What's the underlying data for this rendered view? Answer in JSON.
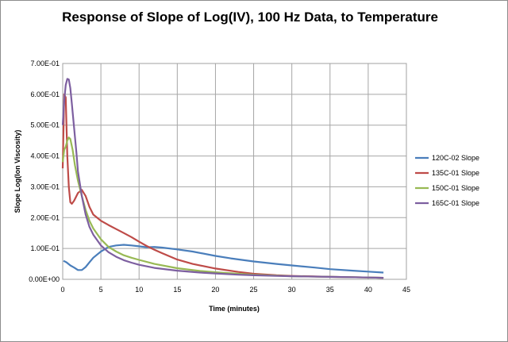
{
  "chart_data": {
    "type": "line",
    "title": "Response of Slope of Log(IV), 100 Hz Data, to Temperature",
    "xlabel": "Time (minutes)",
    "ylabel": "Slope Log(Ion Viscosity)",
    "xlim": [
      0,
      45
    ],
    "ylim": [
      0,
      0.7
    ],
    "x_ticks": [
      "0",
      "5",
      "10",
      "15",
      "20",
      "25",
      "30",
      "35",
      "40",
      "45"
    ],
    "y_ticks": [
      "0.00E+00",
      "1.00E-01",
      "2.00E-01",
      "3.00E-01",
      "4.00E-01",
      "5.00E-01",
      "6.00E-01",
      "7.00E-01"
    ],
    "grid": true,
    "legend_position": "right",
    "series": [
      {
        "name": "120C-02 Slope",
        "color": "#4a7ebb",
        "points": [
          [
            0.1,
            0.06
          ],
          [
            0.5,
            0.055
          ],
          [
            1,
            0.045
          ],
          [
            1.5,
            0.038
          ],
          [
            2,
            0.03
          ],
          [
            2.5,
            0.03
          ],
          [
            3,
            0.04
          ],
          [
            3.5,
            0.055
          ],
          [
            4,
            0.07
          ],
          [
            5,
            0.09
          ],
          [
            6,
            0.105
          ],
          [
            7,
            0.11
          ],
          [
            8,
            0.112
          ],
          [
            9,
            0.11
          ],
          [
            10,
            0.107
          ],
          [
            11,
            0.104
          ],
          [
            12,
            0.105
          ],
          [
            13,
            0.103
          ],
          [
            15,
            0.097
          ],
          [
            17,
            0.09
          ],
          [
            20,
            0.076
          ],
          [
            22,
            0.068
          ],
          [
            25,
            0.058
          ],
          [
            28,
            0.05
          ],
          [
            30,
            0.045
          ],
          [
            33,
            0.038
          ],
          [
            35,
            0.033
          ],
          [
            38,
            0.028
          ],
          [
            40,
            0.025
          ],
          [
            42,
            0.022
          ]
        ]
      },
      {
        "name": "135C-01 Slope",
        "color": "#be4b48",
        "points": [
          [
            0,
            0.36
          ],
          [
            0.2,
            0.6
          ],
          [
            0.4,
            0.59
          ],
          [
            0.6,
            0.4
          ],
          [
            0.8,
            0.3
          ],
          [
            1,
            0.25
          ],
          [
            1.2,
            0.245
          ],
          [
            1.5,
            0.255
          ],
          [
            2,
            0.28
          ],
          [
            2.5,
            0.29
          ],
          [
            3,
            0.27
          ],
          [
            3.5,
            0.235
          ],
          [
            4,
            0.21
          ],
          [
            5,
            0.19
          ],
          [
            6,
            0.176
          ],
          [
            7,
            0.163
          ],
          [
            8,
            0.15
          ],
          [
            9,
            0.137
          ],
          [
            10,
            0.122
          ],
          [
            11,
            0.108
          ],
          [
            12,
            0.096
          ],
          [
            13,
            0.085
          ],
          [
            15,
            0.064
          ],
          [
            17,
            0.05
          ],
          [
            20,
            0.035
          ],
          [
            23,
            0.024
          ],
          [
            25,
            0.018
          ],
          [
            28,
            0.013
          ],
          [
            30,
            0.011
          ],
          [
            35,
            0.008
          ],
          [
            40,
            0.006
          ],
          [
            42,
            0.005
          ]
        ]
      },
      {
        "name": "150C-01 Slope",
        "color": "#98b954",
        "points": [
          [
            0,
            0.38
          ],
          [
            0.2,
            0.42
          ],
          [
            0.4,
            0.43
          ],
          [
            0.6,
            0.45
          ],
          [
            0.8,
            0.46
          ],
          [
            1,
            0.455
          ],
          [
            1.3,
            0.42
          ],
          [
            1.6,
            0.37
          ],
          [
            2,
            0.32
          ],
          [
            2.5,
            0.27
          ],
          [
            3,
            0.225
          ],
          [
            3.5,
            0.19
          ],
          [
            4,
            0.165
          ],
          [
            5,
            0.13
          ],
          [
            6,
            0.105
          ],
          [
            7,
            0.09
          ],
          [
            8,
            0.078
          ],
          [
            9,
            0.07
          ],
          [
            10,
            0.063
          ],
          [
            12,
            0.05
          ],
          [
            15,
            0.036
          ],
          [
            18,
            0.027
          ],
          [
            20,
            0.023
          ],
          [
            23,
            0.018
          ],
          [
            25,
            0.015
          ],
          [
            28,
            0.012
          ],
          [
            30,
            0.01
          ],
          [
            35,
            0.008
          ],
          [
            40,
            0.006
          ],
          [
            42,
            0.005
          ]
        ]
      },
      {
        "name": "165C-01 Slope",
        "color": "#7d5fa0",
        "points": [
          [
            0,
            0.5
          ],
          [
            0.2,
            0.58
          ],
          [
            0.4,
            0.63
          ],
          [
            0.6,
            0.65
          ],
          [
            0.8,
            0.648
          ],
          [
            1,
            0.62
          ],
          [
            1.2,
            0.57
          ],
          [
            1.5,
            0.49
          ],
          [
            1.8,
            0.41
          ],
          [
            2,
            0.35
          ],
          [
            2.5,
            0.27
          ],
          [
            3,
            0.21
          ],
          [
            3.5,
            0.17
          ],
          [
            4,
            0.145
          ],
          [
            5,
            0.11
          ],
          [
            6,
            0.088
          ],
          [
            7,
            0.073
          ],
          [
            8,
            0.062
          ],
          [
            9,
            0.054
          ],
          [
            10,
            0.047
          ],
          [
            12,
            0.037
          ],
          [
            15,
            0.028
          ],
          [
            18,
            0.022
          ],
          [
            20,
            0.019
          ],
          [
            23,
            0.015
          ],
          [
            25,
            0.013
          ],
          [
            28,
            0.011
          ],
          [
            30,
            0.01
          ],
          [
            35,
            0.008
          ],
          [
            40,
            0.006
          ],
          [
            42,
            0.005
          ]
        ]
      }
    ]
  }
}
